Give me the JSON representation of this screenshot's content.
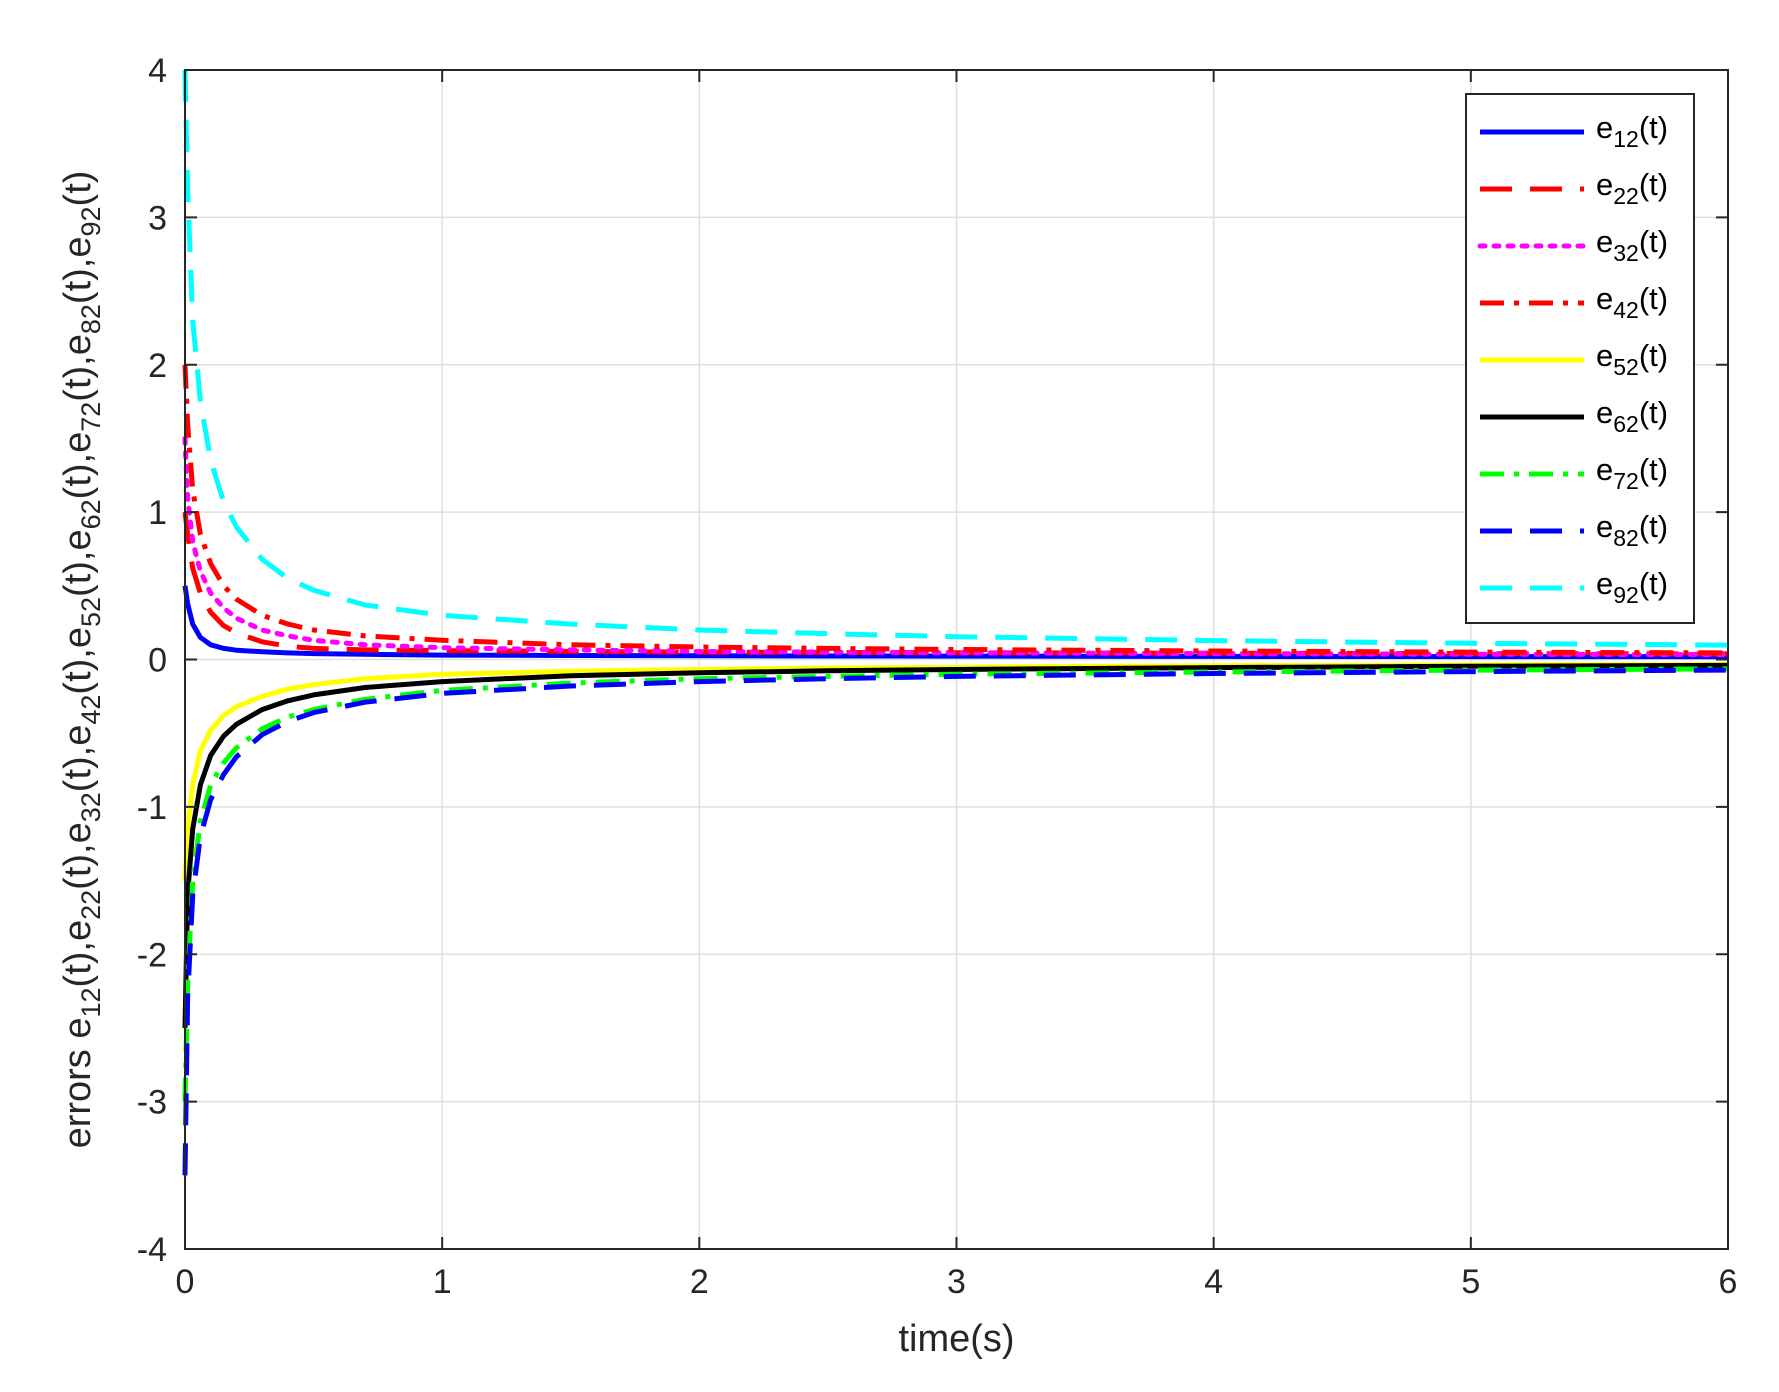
{
  "chart_data": {
    "type": "line",
    "xlabel": "time(s)",
    "ylabel": {
      "prefix": "errors ",
      "parts": [
        {
          "base": "e",
          "sub": "12",
          "suffix": "(t),"
        },
        {
          "base": "e",
          "sub": "22",
          "suffix": "(t),"
        },
        {
          "base": "e",
          "sub": "32",
          "suffix": "(t),"
        },
        {
          "base": "e",
          "sub": "42",
          "suffix": "(t),"
        },
        {
          "base": "e",
          "sub": "52",
          "suffix": "(t),"
        },
        {
          "base": "e",
          "sub": "62",
          "suffix": "(t),"
        },
        {
          "base": "e",
          "sub": "72",
          "suffix": "(t),"
        },
        {
          "base": "e",
          "sub": "82",
          "suffix": "(t),"
        },
        {
          "base": "e",
          "sub": "92",
          "suffix": "(t)"
        }
      ]
    },
    "xlim": [
      0,
      6
    ],
    "ylim": [
      -4,
      4
    ],
    "xticks": [
      "0",
      "1",
      "2",
      "3",
      "4",
      "5",
      "6"
    ],
    "yticks": [
      "-4",
      "-3",
      "-2",
      "-1",
      "0",
      "1",
      "2",
      "3",
      "4"
    ],
    "grid": true,
    "legend_position": "top-right",
    "x": [
      0,
      0.01,
      0.03,
      0.06,
      0.1,
      0.15,
      0.2,
      0.3,
      0.4,
      0.5,
      0.7,
      1,
      1.5,
      2,
      2.5,
      3,
      4,
      5,
      6
    ],
    "series": [
      {
        "name": "e",
        "sub": "12",
        "suffix": "(t)",
        "color": "#0000ff",
        "style": "solid",
        "width": 5,
        "values": [
          0.5,
          0.38,
          0.24,
          0.15,
          0.1,
          0.075,
          0.063,
          0.052,
          0.045,
          0.04,
          0.035,
          0.03,
          0.027,
          0.025,
          0.024,
          0.023,
          0.021,
          0.02,
          0.019
        ]
      },
      {
        "name": "e",
        "sub": "22",
        "suffix": "(t)",
        "color": "#ff0000",
        "style": "dash",
        "width": 5,
        "values": [
          1.0,
          0.85,
          0.62,
          0.45,
          0.32,
          0.23,
          0.18,
          0.12,
          0.09,
          0.075,
          0.065,
          0.06,
          0.055,
          0.05,
          0.048,
          0.046,
          0.043,
          0.04,
          0.038
        ]
      },
      {
        "name": "e",
        "sub": "32",
        "suffix": "(t)",
        "color": "#ff00ff",
        "style": "dot",
        "width": 5,
        "values": [
          1.5,
          1.1,
          0.8,
          0.6,
          0.45,
          0.35,
          0.28,
          0.2,
          0.16,
          0.13,
          0.1,
          0.08,
          0.065,
          0.055,
          0.05,
          0.046,
          0.04,
          0.036,
          0.033
        ]
      },
      {
        "name": "e",
        "sub": "42",
        "suffix": "(t)",
        "color": "#ff0000",
        "style": "dashdot",
        "width": 5,
        "values": [
          2.0,
          1.6,
          1.15,
          0.85,
          0.65,
          0.5,
          0.41,
          0.3,
          0.24,
          0.2,
          0.16,
          0.13,
          0.1,
          0.085,
          0.075,
          0.068,
          0.058,
          0.05,
          0.045
        ]
      },
      {
        "name": "e",
        "sub": "52",
        "suffix": "(t)",
        "color": "#ffff00",
        "style": "solid",
        "width": 5,
        "values": [
          -1.5,
          -1.15,
          -0.85,
          -0.62,
          -0.48,
          -0.38,
          -0.32,
          -0.25,
          -0.2,
          -0.17,
          -0.13,
          -0.1,
          -0.08,
          -0.067,
          -0.058,
          -0.052,
          -0.043,
          -0.037,
          -0.033
        ]
      },
      {
        "name": "e",
        "sub": "62",
        "suffix": "(t)",
        "color": "#000000",
        "style": "solid",
        "width": 5,
        "values": [
          -2.5,
          -1.6,
          -1.15,
          -0.85,
          -0.65,
          -0.52,
          -0.44,
          -0.34,
          -0.28,
          -0.24,
          -0.19,
          -0.15,
          -0.11,
          -0.09,
          -0.077,
          -0.068,
          -0.055,
          -0.046,
          -0.04
        ]
      },
      {
        "name": "e",
        "sub": "72",
        "suffix": "(t)",
        "color": "#00ff00",
        "style": "dashdot",
        "width": 5,
        "values": [
          -3.0,
          -2.2,
          -1.5,
          -1.1,
          -0.85,
          -0.7,
          -0.6,
          -0.47,
          -0.39,
          -0.34,
          -0.27,
          -0.21,
          -0.16,
          -0.13,
          -0.115,
          -0.1,
          -0.085,
          -0.072,
          -0.063
        ]
      },
      {
        "name": "e",
        "sub": "82",
        "suffix": "(t)",
        "color": "#0000ff",
        "style": "dash",
        "width": 5,
        "values": [
          -3.5,
          -2.3,
          -1.6,
          -1.2,
          -0.95,
          -0.78,
          -0.66,
          -0.51,
          -0.42,
          -0.36,
          -0.29,
          -0.23,
          -0.18,
          -0.15,
          -0.13,
          -0.115,
          -0.095,
          -0.082,
          -0.072
        ]
      },
      {
        "name": "e",
        "sub": "92",
        "suffix": "(t)",
        "color": "#00ffff",
        "style": "dash",
        "width": 5,
        "values": [
          4.0,
          3.2,
          2.3,
          1.75,
          1.35,
          1.07,
          0.9,
          0.68,
          0.55,
          0.47,
          0.37,
          0.3,
          0.24,
          0.2,
          0.175,
          0.155,
          0.128,
          0.11,
          0.098
        ]
      }
    ]
  }
}
